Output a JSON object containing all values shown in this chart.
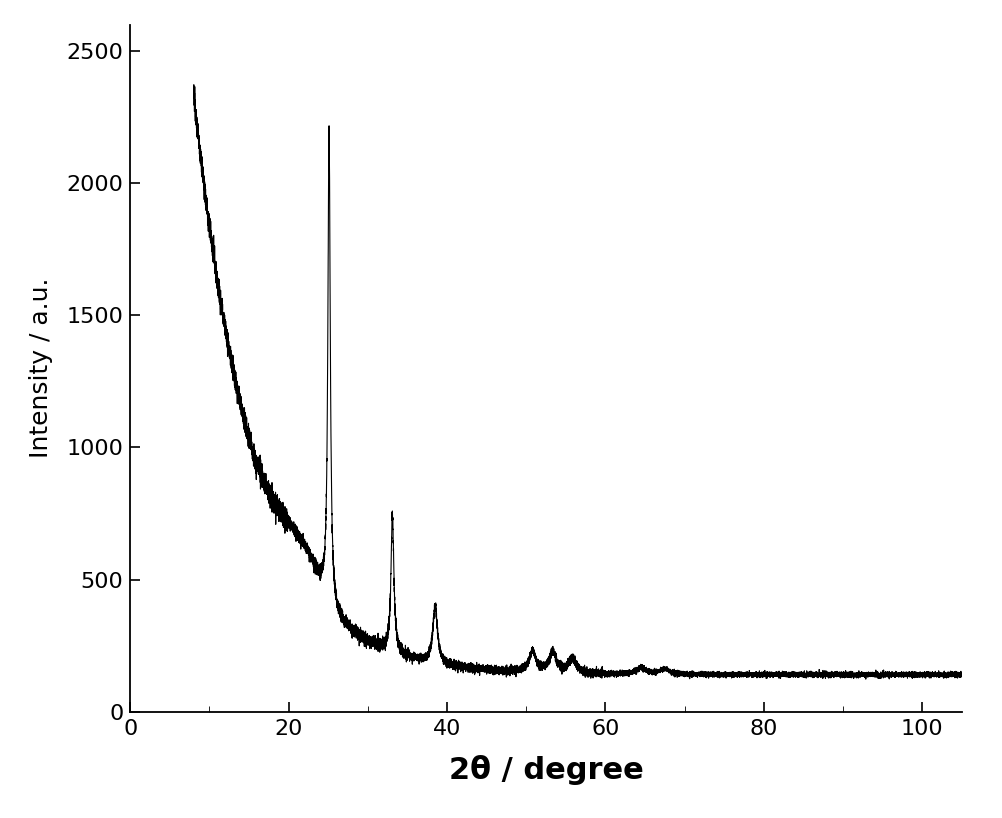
{
  "xlabel": "2θ / degree",
  "ylabel": "Intensity / a.u.",
  "xlim": [
    0,
    105
  ],
  "ylim": [
    0,
    2600
  ],
  "xticks": [
    0,
    20,
    40,
    60,
    80,
    100
  ],
  "yticks": [
    0,
    500,
    1000,
    1500,
    2000,
    2500
  ],
  "line_color": "#000000",
  "line_width": 0.8,
  "background_color": "#ffffff",
  "xlabel_fontsize": 22,
  "ylabel_fontsize": 18,
  "tick_fontsize": 16,
  "figsize": [
    10.02,
    8.18
  ],
  "dpi": 100
}
